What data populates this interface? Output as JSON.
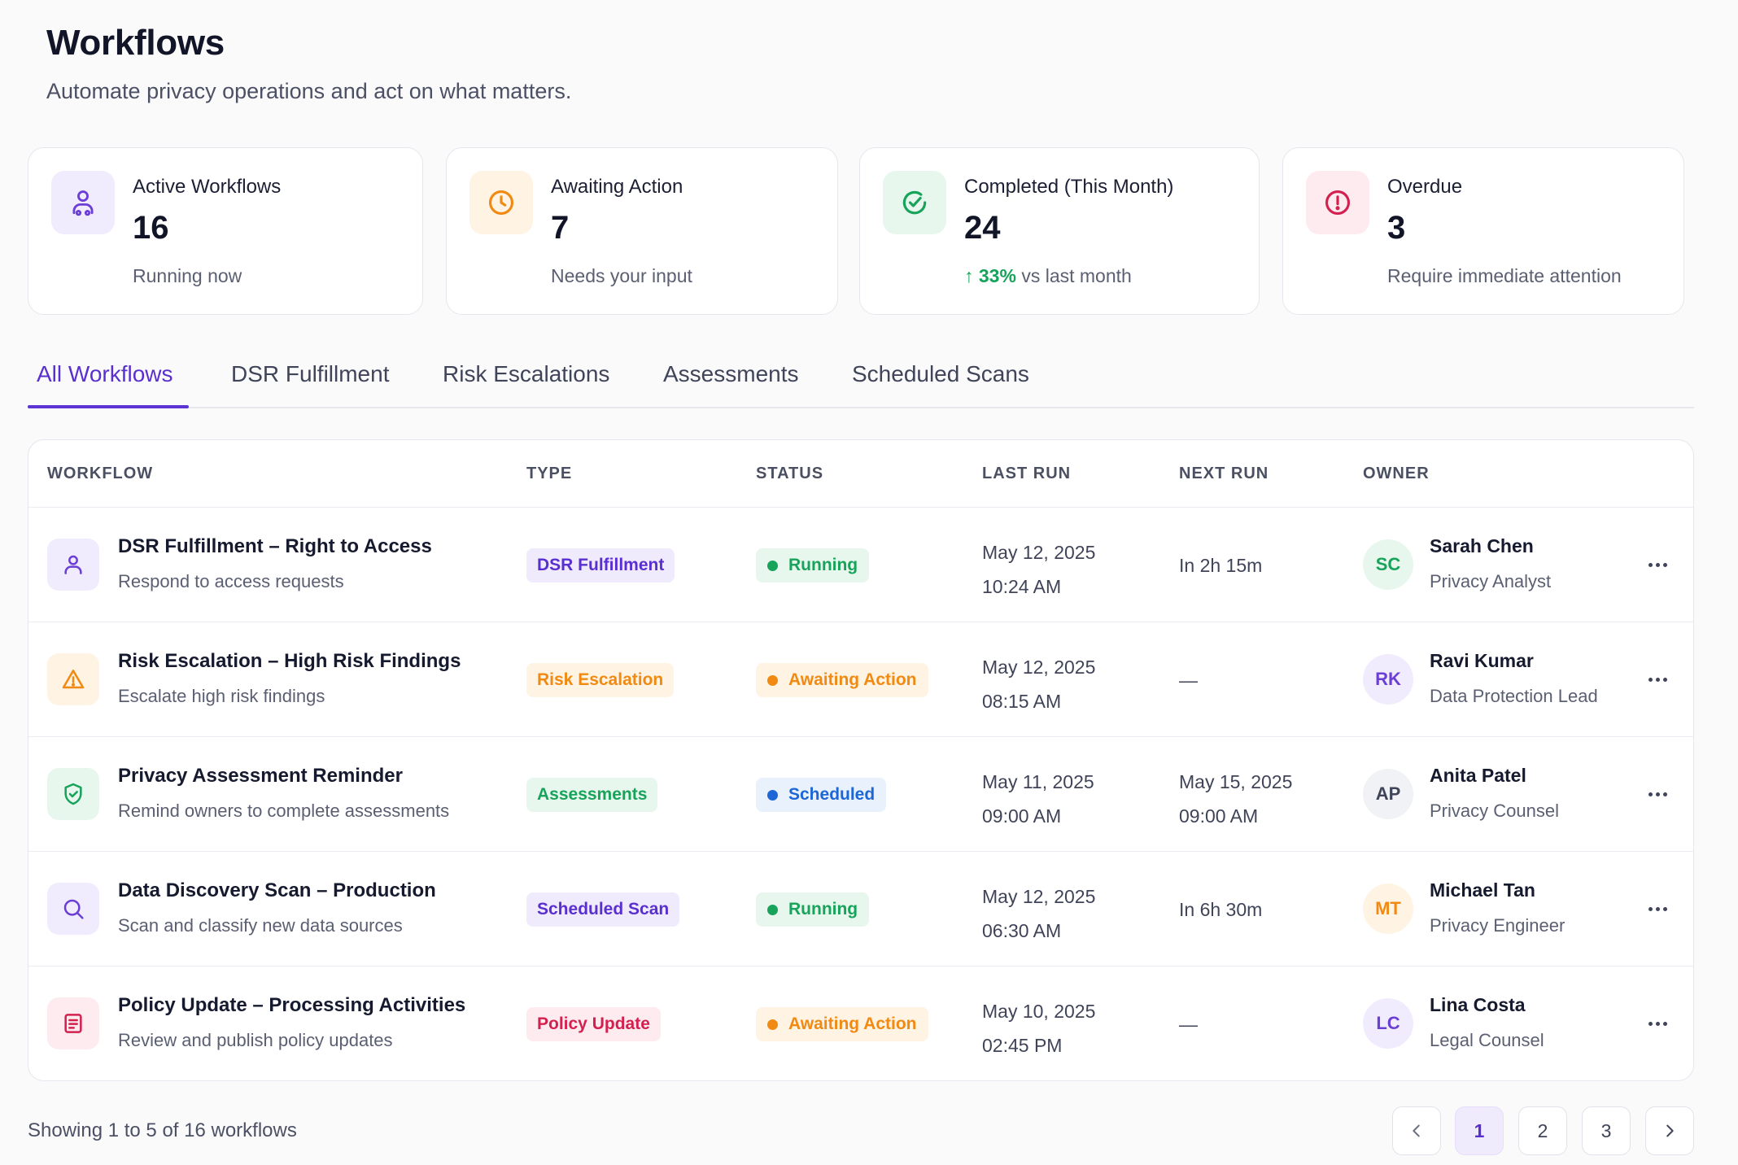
{
  "header": {
    "title": "Workflows",
    "subtitle": "Automate privacy operations and act on what matters."
  },
  "stats": [
    {
      "label": "Active Workflows",
      "value": "16",
      "note": "Running now",
      "icon": "user-flow-icon",
      "color": "#6b3fd6",
      "bg": "#f1ecfd"
    },
    {
      "label": "Awaiting Action",
      "value": "7",
      "note": "Needs your input",
      "icon": "clock-icon",
      "color": "#f08a12",
      "bg": "#fff3e4"
    },
    {
      "label": "Completed (This Month)",
      "value": "24",
      "note_up": "33%",
      "note_rest": " vs last month",
      "icon": "check-circle-icon",
      "color": "#17a35a",
      "bg": "#e8f7ee"
    },
    {
      "label": "Overdue",
      "value": "3",
      "note": "Require immediate attention",
      "icon": "alert-circle-icon",
      "color": "#d3214f",
      "bg": "#fdebef"
    }
  ],
  "tabs": [
    "All Workflows",
    "DSR Fulfillment",
    "Risk Escalations",
    "Assessments",
    "Scheduled Scans"
  ],
  "active_tab": "All Workflows",
  "table": {
    "headers": [
      "WORKFLOW",
      "TYPE",
      "STATUS",
      "LAST RUN",
      "NEXT RUN",
      "OWNER"
    ],
    "rows": [
      {
        "name": "DSR Fulfillment – Right to Access",
        "desc": "Respond to access requests",
        "icon": "user-icon",
        "type": "DSR Fulfillment",
        "status": "Running",
        "last_run_date": "May 12, 2025",
        "last_run_time": "10:24 AM",
        "next_run_1": "In 2h 15m",
        "next_run_2": "",
        "owner_initials": "SC",
        "owner_name": "Sarah Chen",
        "owner_role": "Privacy Analyst"
      },
      {
        "name": "Risk Escalation – High Risk Findings",
        "desc": "Escalate high risk findings",
        "icon": "warning-triangle-icon",
        "type": "Risk Escalation",
        "status": "Awaiting Action",
        "last_run_date": "May 12, 2025",
        "last_run_time": "08:15 AM",
        "next_run_1": "—",
        "next_run_2": "",
        "owner_initials": "RK",
        "owner_name": "Ravi Kumar",
        "owner_role": "Data Protection Lead"
      },
      {
        "name": "Privacy Assessment Reminder",
        "desc": "Remind owners to complete assessments",
        "icon": "shield-check-icon",
        "type": "Assessments",
        "status": "Scheduled",
        "last_run_date": "May 11, 2025",
        "last_run_time": "09:00 AM",
        "next_run_1": "May 15, 2025",
        "next_run_2": "09:00 AM",
        "owner_initials": "AP",
        "owner_name": "Anita Patel",
        "owner_role": "Privacy Counsel"
      },
      {
        "name": "Data Discovery Scan – Production",
        "desc": "Scan and classify new data sources",
        "icon": "search-icon",
        "type": "Scheduled Scan",
        "status": "Running",
        "last_run_date": "May 12, 2025",
        "last_run_time": "06:30 AM",
        "next_run_1": "In 6h 30m",
        "next_run_2": "",
        "owner_initials": "MT",
        "owner_name": "Michael Tan",
        "owner_role": "Privacy Engineer"
      },
      {
        "name": "Policy Update – Processing Activities",
        "desc": "Review and publish policy updates",
        "icon": "document-icon",
        "type": "Policy Update",
        "status": "Awaiting Action",
        "last_run_date": "May 10, 2025",
        "last_run_time": "02:45 PM",
        "next_run_1": "—",
        "next_run_2": "",
        "owner_initials": "LC",
        "owner_name": "Lina Costa",
        "owner_role": "Legal Counsel"
      }
    ]
  },
  "footer": {
    "showing": "Showing 1 to 5 of 16 workflows",
    "pages": [
      "1",
      "2",
      "3"
    ],
    "current_page": "1"
  },
  "colors": {
    "accent": "#5b34d3",
    "running": "#17a35a",
    "awaiting": "#f08a12",
    "scheduled": "#1d66d6"
  }
}
